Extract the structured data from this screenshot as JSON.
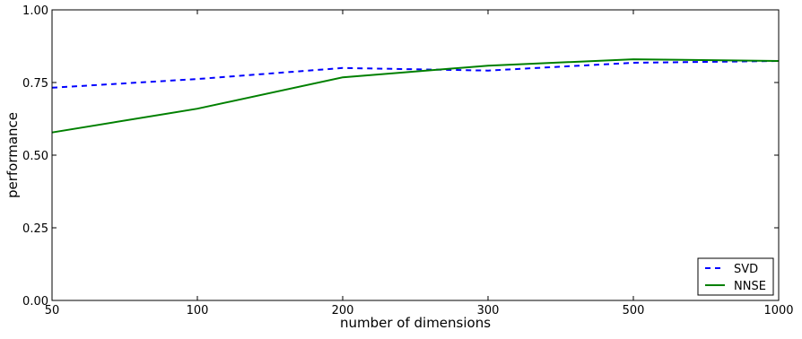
{
  "chart_data": {
    "type": "line",
    "xlabel": "number of dimensions",
    "ylabel": "performance",
    "x_categories": [
      "50",
      "100",
      "200",
      "300",
      "500",
      "1000"
    ],
    "yticks": [
      "0.00",
      "0.25",
      "0.50",
      "0.75",
      "1.00"
    ],
    "ylim": [
      0,
      1
    ],
    "grid": false,
    "legend_position": "bottom-right",
    "series": [
      {
        "name": "SVD",
        "style": "dashed",
        "color": "#0000ff",
        "values": [
          0.732,
          0.762,
          0.8,
          0.791,
          0.818,
          0.824
        ]
      },
      {
        "name": "NNSE",
        "style": "solid",
        "color": "#008000",
        "values": [
          0.578,
          0.66,
          0.768,
          0.808,
          0.83,
          0.824
        ]
      }
    ]
  }
}
